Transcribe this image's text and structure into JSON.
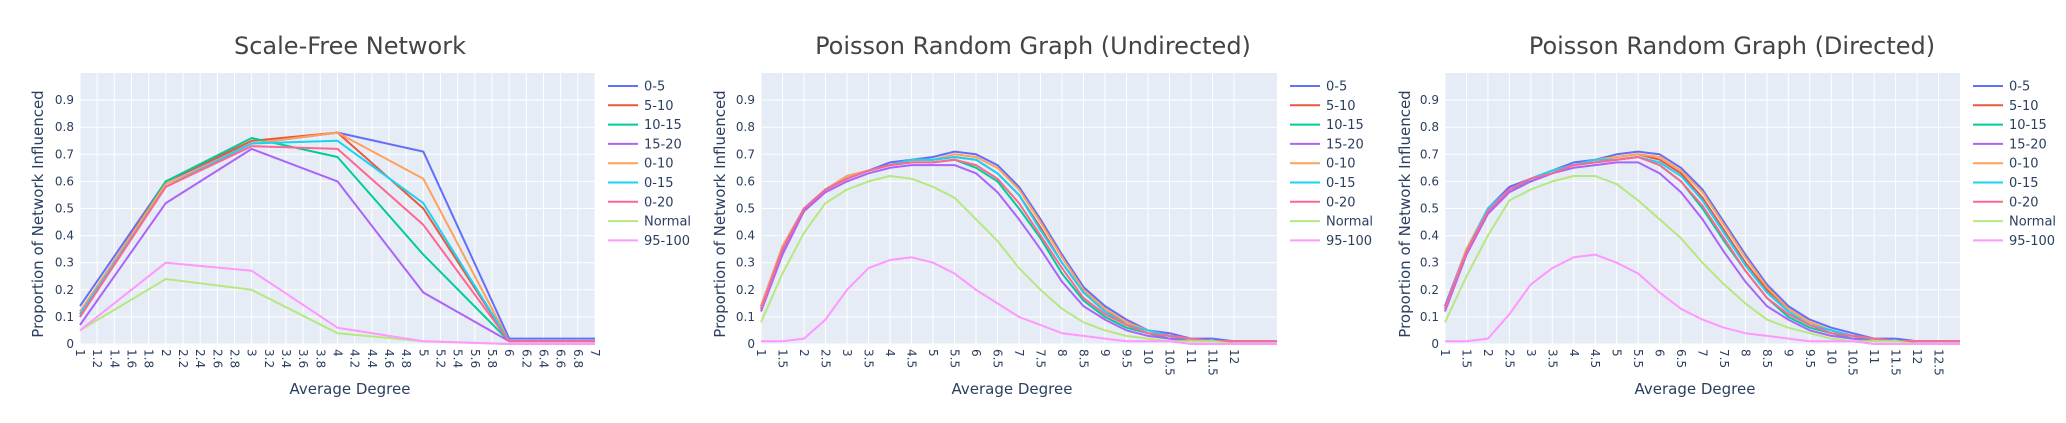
{
  "colors": {
    "0-5": "#636efa",
    "5-10": "#ef553b",
    "10-15": "#00cc96",
    "15-20": "#ab63fa",
    "0-10": "#ffa15a",
    "0-15": "#19d3f3",
    "0-20": "#ff6692",
    "Normal": "#b6e880",
    "95-100": "#ff97ff"
  },
  "chart_data": [
    {
      "type": "line",
      "title": "Scale-Free Network",
      "xlabel": "Average Degree",
      "ylabel": "Proportion of Network Influenced",
      "xlim": [
        1,
        7
      ],
      "ylim": [
        0,
        1.0
      ],
      "xticks": [
        "1",
        "1.2",
        "1.4",
        "1.6",
        "1.8",
        "2",
        "2.2",
        "2.4",
        "2.6",
        "2.8",
        "3",
        "3.2",
        "3.4",
        "3.6",
        "3.8",
        "4",
        "4.2",
        "4.4",
        "4.6",
        "4.8",
        "5",
        "5.2",
        "5.4",
        "5.6",
        "5.8",
        "6",
        "6.2",
        "6.4",
        "6.6",
        "6.8",
        "7"
      ],
      "yticks": [
        "0",
        "0.1",
        "0.2",
        "0.3",
        "0.4",
        "0.5",
        "0.6",
        "0.7",
        "0.8",
        "0.9"
      ],
      "legend": [
        "0-5",
        "5-10",
        "10-15",
        "15-20",
        "0-10",
        "0-15",
        "0-20",
        "Normal",
        "95-100"
      ],
      "x": [
        1,
        2,
        3,
        4,
        5,
        6,
        7
      ],
      "series": [
        {
          "name": "0-5",
          "values": [
            0.14,
            0.6,
            0.74,
            0.78,
            0.71,
            0.02,
            0.02
          ]
        },
        {
          "name": "5-10",
          "values": [
            0.11,
            0.6,
            0.75,
            0.78,
            0.5,
            0.01,
            0.01
          ]
        },
        {
          "name": "10-15",
          "values": [
            0.1,
            0.6,
            0.76,
            0.69,
            0.33,
            0.01,
            0.01
          ]
        },
        {
          "name": "15-20",
          "values": [
            0.07,
            0.52,
            0.72,
            0.6,
            0.19,
            0.01,
            0.01
          ]
        },
        {
          "name": "0-10",
          "values": [
            0.12,
            0.59,
            0.74,
            0.78,
            0.61,
            0.01,
            0.01
          ]
        },
        {
          "name": "0-15",
          "values": [
            0.11,
            0.58,
            0.74,
            0.75,
            0.52,
            0.01,
            0.01
          ]
        },
        {
          "name": "0-20",
          "values": [
            0.1,
            0.58,
            0.73,
            0.72,
            0.44,
            0.01,
            0.01
          ]
        },
        {
          "name": "Normal",
          "values": [
            0.05,
            0.24,
            0.2,
            0.04,
            0.01,
            0.0,
            0.0
          ]
        },
        {
          "name": "95-100",
          "values": [
            0.05,
            0.3,
            0.27,
            0.06,
            0.01,
            0.0,
            0.0
          ]
        }
      ]
    },
    {
      "type": "line",
      "title": "Poisson Random Graph (Undirected)",
      "xlabel": "Average Degree",
      "ylabel": "Proportion of Network Influenced",
      "xlim": [
        1,
        13
      ],
      "ylim": [
        0,
        1.0
      ],
      "xticks": [
        "1",
        "1.5",
        "2",
        "2.5",
        "3",
        "3.5",
        "4",
        "4.5",
        "5",
        "5.5",
        "6",
        "6.5",
        "7",
        "7.5",
        "8",
        "8.5",
        "9",
        "9.5",
        "10",
        "10.5",
        "11",
        "11.5",
        "12"
      ],
      "yticks": [
        "0",
        "0.1",
        "0.2",
        "0.3",
        "0.4",
        "0.5",
        "0.6",
        "0.7",
        "0.8",
        "0.9"
      ],
      "legend": [
        "0-5",
        "5-10",
        "10-15",
        "15-20",
        "0-10",
        "0-15",
        "0-20",
        "Normal",
        "95-100"
      ],
      "x": [
        1,
        1.5,
        2,
        2.5,
        3,
        3.5,
        4,
        4.5,
        5,
        5.5,
        6,
        6.5,
        7,
        7.5,
        8,
        8.5,
        9,
        9.5,
        10,
        10.5,
        11,
        11.5,
        12,
        12.5,
        13
      ],
      "series": [
        {
          "name": "0-5",
          "values": [
            0.14,
            0.36,
            0.5,
            0.57,
            0.62,
            0.64,
            0.67,
            0.68,
            0.69,
            0.71,
            0.7,
            0.66,
            0.58,
            0.46,
            0.33,
            0.21,
            0.14,
            0.09,
            0.05,
            0.04,
            0.02,
            0.02,
            0.01,
            0.01,
            0.01
          ]
        },
        {
          "name": "5-10",
          "values": [
            0.13,
            0.35,
            0.5,
            0.57,
            0.61,
            0.64,
            0.66,
            0.68,
            0.68,
            0.69,
            0.68,
            0.63,
            0.55,
            0.43,
            0.3,
            0.19,
            0.12,
            0.08,
            0.05,
            0.03,
            0.02,
            0.01,
            0.01,
            0.01,
            0.01
          ]
        },
        {
          "name": "10-15",
          "values": [
            0.13,
            0.34,
            0.49,
            0.57,
            0.61,
            0.64,
            0.66,
            0.67,
            0.67,
            0.68,
            0.65,
            0.6,
            0.5,
            0.39,
            0.26,
            0.16,
            0.1,
            0.06,
            0.04,
            0.02,
            0.02,
            0.01,
            0.01,
            0.01,
            0.01
          ]
        },
        {
          "name": "15-20",
          "values": [
            0.12,
            0.33,
            0.49,
            0.56,
            0.6,
            0.63,
            0.65,
            0.66,
            0.66,
            0.66,
            0.63,
            0.56,
            0.46,
            0.35,
            0.23,
            0.14,
            0.09,
            0.05,
            0.03,
            0.02,
            0.01,
            0.01,
            0.01,
            0.01,
            0.01
          ]
        },
        {
          "name": "0-10",
          "values": [
            0.14,
            0.36,
            0.5,
            0.57,
            0.62,
            0.64,
            0.66,
            0.68,
            0.68,
            0.7,
            0.69,
            0.65,
            0.57,
            0.45,
            0.32,
            0.2,
            0.13,
            0.08,
            0.05,
            0.03,
            0.02,
            0.01,
            0.01,
            0.01,
            0.01
          ]
        },
        {
          "name": "0-15",
          "values": [
            0.13,
            0.35,
            0.5,
            0.57,
            0.61,
            0.64,
            0.66,
            0.68,
            0.68,
            0.69,
            0.68,
            0.63,
            0.55,
            0.42,
            0.3,
            0.19,
            0.12,
            0.07,
            0.05,
            0.03,
            0.02,
            0.01,
            0.01,
            0.01,
            0.01
          ]
        },
        {
          "name": "0-20",
          "values": [
            0.13,
            0.35,
            0.5,
            0.57,
            0.61,
            0.64,
            0.66,
            0.67,
            0.67,
            0.68,
            0.66,
            0.61,
            0.52,
            0.4,
            0.28,
            0.17,
            0.11,
            0.07,
            0.04,
            0.03,
            0.02,
            0.01,
            0.01,
            0.01,
            0.01
          ]
        },
        {
          "name": "Normal",
          "values": [
            0.08,
            0.26,
            0.41,
            0.52,
            0.57,
            0.6,
            0.62,
            0.61,
            0.58,
            0.54,
            0.46,
            0.38,
            0.28,
            0.2,
            0.13,
            0.08,
            0.05,
            0.03,
            0.02,
            0.01,
            0.01,
            0.01,
            0.0,
            0.0,
            0.0
          ]
        },
        {
          "name": "95-100",
          "values": [
            0.01,
            0.01,
            0.02,
            0.09,
            0.2,
            0.28,
            0.31,
            0.32,
            0.3,
            0.26,
            0.2,
            0.15,
            0.1,
            0.07,
            0.04,
            0.03,
            0.02,
            0.01,
            0.01,
            0.01,
            0.0,
            0.0,
            0.0,
            0.0,
            0.0
          ]
        }
      ]
    },
    {
      "type": "line",
      "title": "Poisson Random Graph (Directed)",
      "xlabel": "Average Degree",
      "ylabel": "Proportion of Network Influenced",
      "xlim": [
        1,
        13
      ],
      "ylim": [
        0,
        1.0
      ],
      "xticks": [
        "1",
        "1.5",
        "2",
        "2.5",
        "3",
        "3.5",
        "4",
        "4.5",
        "5",
        "5.5",
        "6",
        "6.5",
        "7",
        "7.5",
        "8",
        "8.5",
        "9",
        "9.5",
        "10",
        "10.5",
        "11",
        "11.5",
        "12",
        "12.5"
      ],
      "yticks": [
        "0",
        "0.1",
        "0.2",
        "0.3",
        "0.4",
        "0.5",
        "0.6",
        "0.7",
        "0.8",
        "0.9"
      ],
      "legend": [
        "0-5",
        "5-10",
        "10-15",
        "15-20",
        "0-10",
        "0-15",
        "0-20",
        "Normal",
        "95-100"
      ],
      "x": [
        1,
        1.5,
        2,
        2.5,
        3,
        3.5,
        4,
        4.5,
        5,
        5.5,
        6,
        6.5,
        7,
        7.5,
        8,
        8.5,
        9,
        9.5,
        10,
        10.5,
        11,
        11.5,
        12,
        12.5,
        13
      ],
      "series": [
        {
          "name": "0-5",
          "values": [
            0.14,
            0.35,
            0.5,
            0.58,
            0.61,
            0.64,
            0.67,
            0.68,
            0.7,
            0.71,
            0.7,
            0.65,
            0.57,
            0.45,
            0.33,
            0.22,
            0.14,
            0.09,
            0.06,
            0.04,
            0.02,
            0.02,
            0.01,
            0.01,
            0.01
          ]
        },
        {
          "name": "5-10",
          "values": [
            0.13,
            0.34,
            0.5,
            0.57,
            0.61,
            0.64,
            0.66,
            0.68,
            0.69,
            0.7,
            0.68,
            0.63,
            0.54,
            0.42,
            0.3,
            0.2,
            0.13,
            0.08,
            0.05,
            0.03,
            0.02,
            0.01,
            0.01,
            0.01,
            0.01
          ]
        },
        {
          "name": "10-15",
          "values": [
            0.13,
            0.34,
            0.49,
            0.57,
            0.6,
            0.63,
            0.66,
            0.67,
            0.68,
            0.69,
            0.66,
            0.6,
            0.5,
            0.38,
            0.27,
            0.17,
            0.1,
            0.06,
            0.04,
            0.02,
            0.02,
            0.01,
            0.01,
            0.01,
            0.01
          ]
        },
        {
          "name": "15-20",
          "values": [
            0.12,
            0.33,
            0.48,
            0.56,
            0.6,
            0.63,
            0.65,
            0.66,
            0.67,
            0.67,
            0.63,
            0.56,
            0.46,
            0.34,
            0.23,
            0.14,
            0.09,
            0.05,
            0.03,
            0.02,
            0.01,
            0.01,
            0.01,
            0.01,
            0.01
          ]
        },
        {
          "name": "0-10",
          "values": [
            0.13,
            0.35,
            0.5,
            0.57,
            0.61,
            0.64,
            0.66,
            0.68,
            0.69,
            0.7,
            0.69,
            0.64,
            0.56,
            0.44,
            0.32,
            0.21,
            0.13,
            0.08,
            0.05,
            0.03,
            0.02,
            0.01,
            0.01,
            0.01,
            0.01
          ]
        },
        {
          "name": "0-15",
          "values": [
            0.13,
            0.34,
            0.5,
            0.57,
            0.61,
            0.64,
            0.66,
            0.68,
            0.68,
            0.69,
            0.67,
            0.62,
            0.53,
            0.41,
            0.29,
            0.19,
            0.12,
            0.07,
            0.05,
            0.03,
            0.02,
            0.01,
            0.01,
            0.01,
            0.01
          ]
        },
        {
          "name": "0-20",
          "values": [
            0.13,
            0.34,
            0.49,
            0.57,
            0.61,
            0.63,
            0.66,
            0.67,
            0.68,
            0.69,
            0.66,
            0.6,
            0.51,
            0.39,
            0.27,
            0.17,
            0.11,
            0.07,
            0.04,
            0.03,
            0.02,
            0.01,
            0.01,
            0.01,
            0.01
          ]
        },
        {
          "name": "Normal",
          "values": [
            0.08,
            0.25,
            0.4,
            0.53,
            0.57,
            0.6,
            0.62,
            0.62,
            0.59,
            0.53,
            0.46,
            0.39,
            0.3,
            0.22,
            0.15,
            0.09,
            0.06,
            0.04,
            0.02,
            0.01,
            0.01,
            0.01,
            0.0,
            0.0,
            0.0
          ]
        },
        {
          "name": "95-100",
          "values": [
            0.01,
            0.01,
            0.02,
            0.11,
            0.22,
            0.28,
            0.32,
            0.33,
            0.3,
            0.26,
            0.19,
            0.13,
            0.09,
            0.06,
            0.04,
            0.03,
            0.02,
            0.01,
            0.01,
            0.01,
            0.0,
            0.0,
            0.0,
            0.0,
            0.0
          ]
        }
      ]
    }
  ]
}
